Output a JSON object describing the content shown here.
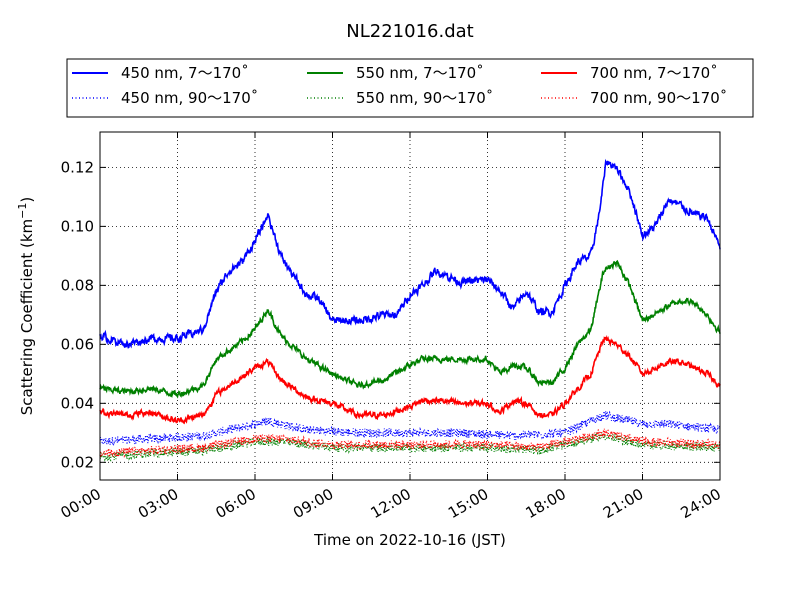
{
  "chart_data": {
    "type": "line",
    "title": "NL221016.dat",
    "xlabel": "Time on 2022-10-16 (JST)",
    "ylabel_main": "Scattering Coefficient (km",
    "ylabel_sup": "−1",
    "ylabel_end": ")",
    "xlim": [
      "2022-10-16 00:00",
      "2022-10-17 00:00"
    ],
    "ylim": [
      0.014,
      0.132
    ],
    "grid": true,
    "legend_position": "top, above plot, 3 columns",
    "x_ticks": [
      "00:00",
      "03:00",
      "06:00",
      "09:00",
      "12:00",
      "15:00",
      "18:00",
      "21:00",
      "24:00"
    ],
    "y_ticks": [
      "0.02",
      "0.04",
      "0.06",
      "0.08",
      "0.10",
      "0.12"
    ],
    "x_units": "hour of day (JST)",
    "series": [
      {
        "name": "450 nm, 7～170˚",
        "color": "#0000ff",
        "style": "solid",
        "x": [
          0,
          1,
          2,
          3,
          4,
          4.5,
          5,
          5.5,
          6,
          6.3,
          6.5,
          7,
          7.5,
          8,
          8.5,
          9,
          10,
          11,
          11.5,
          12,
          12.5,
          13,
          14,
          15,
          15.5,
          16,
          16.5,
          17,
          17.5,
          18,
          18.5,
          19,
          19.3,
          19.6,
          20,
          20.5,
          21,
          21.5,
          22,
          22.5,
          23,
          23.5,
          24
        ],
        "y": [
          0.063,
          0.06,
          0.062,
          0.062,
          0.065,
          0.078,
          0.085,
          0.088,
          0.095,
          0.1,
          0.104,
          0.09,
          0.083,
          0.077,
          0.075,
          0.068,
          0.068,
          0.07,
          0.07,
          0.077,
          0.08,
          0.085,
          0.081,
          0.082,
          0.078,
          0.072,
          0.078,
          0.071,
          0.071,
          0.08,
          0.088,
          0.09,
          0.103,
          0.122,
          0.12,
          0.112,
          0.097,
          0.1,
          0.109,
          0.107,
          0.104,
          0.103,
          0.093
        ]
      },
      {
        "name": "450 nm, 90～170˚",
        "color": "#0000ff",
        "style": "dotted",
        "x": [
          0,
          2,
          4,
          6,
          6.5,
          8,
          10,
          12,
          14,
          16,
          18,
          19.5,
          21,
          22,
          24
        ],
        "y": [
          0.027,
          0.028,
          0.029,
          0.033,
          0.034,
          0.031,
          0.03,
          0.03,
          0.03,
          0.029,
          0.03,
          0.036,
          0.033,
          0.033,
          0.031
        ]
      },
      {
        "name": "550 nm, 7～170˚",
        "color": "#008000",
        "style": "solid",
        "x": [
          0,
          1,
          2,
          3,
          4,
          4.5,
          5,
          5.5,
          6,
          6.5,
          7,
          8,
          9,
          10,
          11,
          12,
          12.5,
          13,
          14,
          15,
          15.5,
          16,
          16.5,
          17,
          17.5,
          18,
          18.5,
          19,
          19.5,
          20,
          20.5,
          21,
          22,
          22.5,
          23,
          23.5,
          24
        ],
        "y": [
          0.045,
          0.044,
          0.045,
          0.043,
          0.046,
          0.055,
          0.058,
          0.061,
          0.065,
          0.072,
          0.063,
          0.055,
          0.05,
          0.046,
          0.048,
          0.053,
          0.055,
          0.055,
          0.055,
          0.055,
          0.05,
          0.053,
          0.052,
          0.047,
          0.047,
          0.052,
          0.06,
          0.065,
          0.085,
          0.088,
          0.08,
          0.068,
          0.073,
          0.075,
          0.074,
          0.07,
          0.064
        ]
      },
      {
        "name": "550 nm, 90～170˚",
        "color": "#008000",
        "style": "dotted",
        "x": [
          0,
          2,
          4,
          6,
          7,
          9,
          12,
          15,
          17,
          19.5,
          21,
          24
        ],
        "y": [
          0.022,
          0.023,
          0.024,
          0.027,
          0.027,
          0.025,
          0.025,
          0.025,
          0.024,
          0.029,
          0.026,
          0.025
        ]
      },
      {
        "name": "700 nm, 7～170˚",
        "color": "#ff0000",
        "style": "solid",
        "x": [
          0,
          1,
          2,
          3,
          4,
          4.5,
          5,
          5.5,
          6,
          6.5,
          7,
          8,
          9,
          10,
          11,
          12,
          12.5,
          13,
          14,
          15,
          15.5,
          16,
          16.5,
          17,
          17.5,
          18,
          18.5,
          19,
          19.5,
          20,
          20.5,
          21,
          22,
          22.5,
          23,
          23.5,
          24
        ],
        "y": [
          0.037,
          0.036,
          0.037,
          0.034,
          0.036,
          0.043,
          0.046,
          0.049,
          0.052,
          0.054,
          0.048,
          0.042,
          0.04,
          0.036,
          0.036,
          0.039,
          0.041,
          0.041,
          0.04,
          0.04,
          0.037,
          0.041,
          0.04,
          0.036,
          0.036,
          0.04,
          0.045,
          0.05,
          0.062,
          0.06,
          0.056,
          0.05,
          0.054,
          0.054,
          0.052,
          0.05,
          0.046
        ]
      },
      {
        "name": "700 nm, 90～170˚",
        "color": "#ff0000",
        "style": "dotted",
        "x": [
          0,
          2,
          4,
          6,
          7,
          9,
          12,
          15,
          17,
          19.5,
          21,
          24
        ],
        "y": [
          0.023,
          0.024,
          0.025,
          0.028,
          0.028,
          0.026,
          0.026,
          0.026,
          0.025,
          0.03,
          0.027,
          0.026
        ]
      }
    ]
  }
}
